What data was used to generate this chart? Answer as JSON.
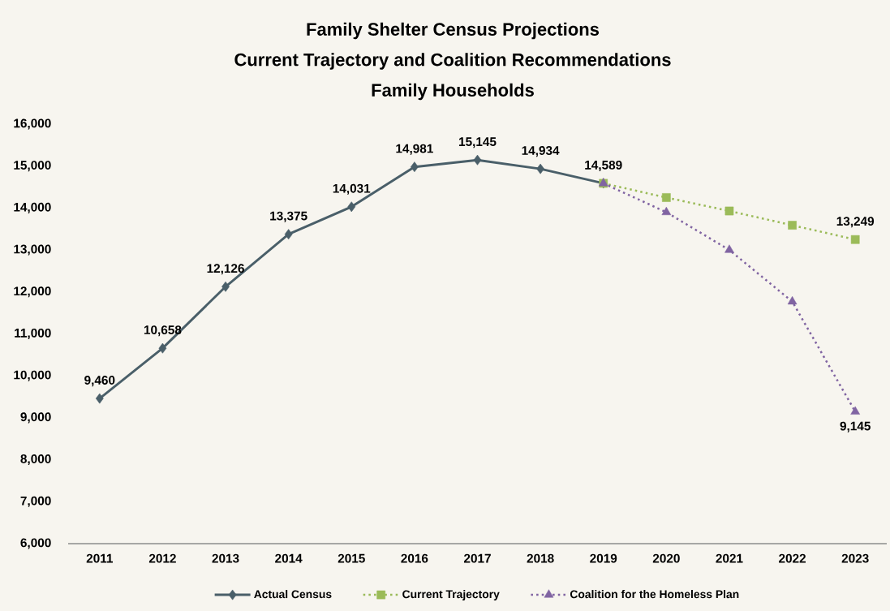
{
  "chart_data": {
    "type": "line",
    "title": "Family Shelter Census Projections",
    "subtitle": "Current Trajectory and Coalition Recommendations",
    "annotations": [
      "Family Households"
    ],
    "categories": [
      "2011",
      "2012",
      "2013",
      "2014",
      "2015",
      "2016",
      "2017",
      "2018",
      "2019",
      "2020",
      "2021",
      "2022",
      "2023"
    ],
    "series": [
      {
        "name": "Actual Census",
        "color": "#4a5f69",
        "marker": "diamond",
        "line_style": "solid",
        "values": [
          9460,
          10658,
          12126,
          13375,
          14031,
          14981,
          15145,
          14934,
          14589,
          null,
          null,
          null,
          null
        ],
        "value_labels": [
          "9,460",
          "10,658",
          "12,126",
          "13,375",
          "14,031",
          "14,981",
          "15,145",
          "14,934",
          "14,589",
          null,
          null,
          null,
          null
        ]
      },
      {
        "name": "Current Trajectory",
        "color": "#9bbb59",
        "marker": "square",
        "line_style": "dotted",
        "values": [
          null,
          null,
          null,
          null,
          null,
          null,
          null,
          null,
          14589,
          14250,
          13930,
          13590,
          13249
        ],
        "value_labels": [
          null,
          null,
          null,
          null,
          null,
          null,
          null,
          null,
          null,
          null,
          null,
          null,
          "13,249"
        ]
      },
      {
        "name": "Coalition for the Homeless Plan",
        "color": "#8064a2",
        "marker": "triangle",
        "line_style": "dotted",
        "values": [
          null,
          null,
          null,
          null,
          null,
          null,
          null,
          null,
          14589,
          13900,
          13000,
          11770,
          9145
        ],
        "value_labels": [
          null,
          null,
          null,
          null,
          null,
          null,
          null,
          null,
          null,
          null,
          null,
          null,
          "9,145"
        ]
      }
    ],
    "ylim": [
      6000,
      16000
    ],
    "yticks": [
      {
        "value": 6000,
        "label": "6,000"
      },
      {
        "value": 7000,
        "label": "7,000"
      },
      {
        "value": 8000,
        "label": "8,000"
      },
      {
        "value": 9000,
        "label": "9,000"
      },
      {
        "value": 10000,
        "label": "10,000"
      },
      {
        "value": 11000,
        "label": "11,000"
      },
      {
        "value": 12000,
        "label": "12,000"
      },
      {
        "value": 13000,
        "label": "13,000"
      },
      {
        "value": 14000,
        "label": "14,000"
      },
      {
        "value": 15000,
        "label": "15,000"
      },
      {
        "value": 16000,
        "label": "16,000"
      }
    ],
    "legend": "bottom"
  }
}
